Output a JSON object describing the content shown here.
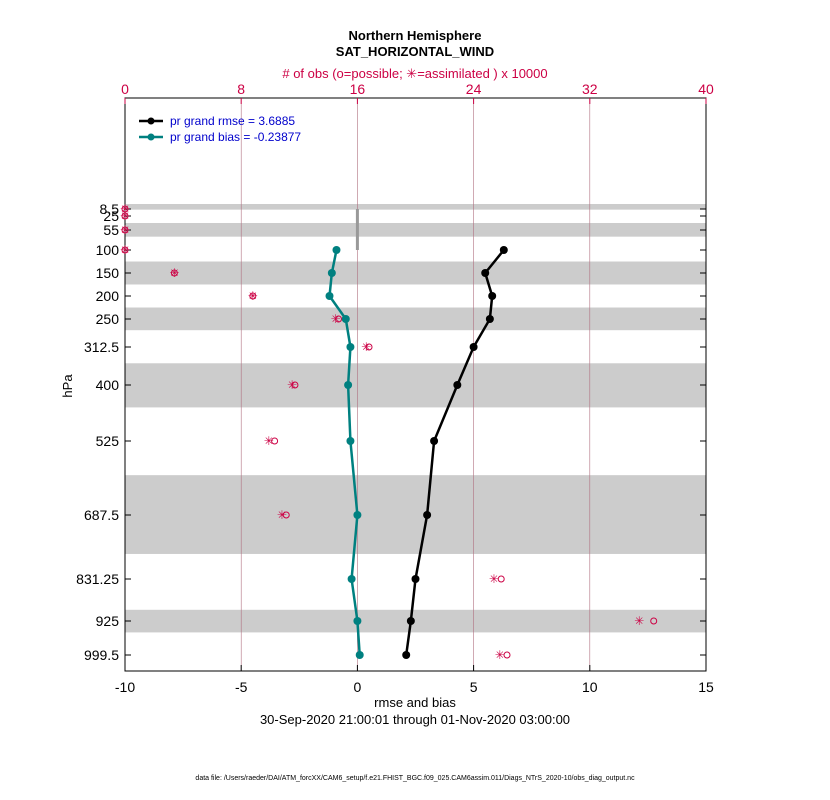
{
  "chart_data": {
    "type": "line",
    "title": "Northern Hemisphere",
    "subtitle": "SAT_HORIZONTAL_WIND",
    "top_axis_label": "# of obs (o=possible;  ✳=assimilated ) x 10000",
    "xlabel": "rmse and bias",
    "ylabel": "hPa",
    "date_range": "30-Sep-2020 21:00:01 through 01-Nov-2020 03:00:00",
    "xlim": [
      -10,
      15
    ],
    "x_ticks": [
      "-10",
      "-5",
      "0",
      "5",
      "10",
      "15"
    ],
    "top_xlim": [
      0,
      40
    ],
    "top_ticks": [
      "0",
      "8",
      "16",
      "24",
      "32",
      "40"
    ],
    "y_ticks": [
      "8.5",
      "25",
      "55",
      "100",
      "150",
      "200",
      "250",
      "312.5",
      "400",
      "525",
      "687.5",
      "831.25",
      "925",
      "999.5"
    ],
    "legend_position": "top-left",
    "series": [
      {
        "name": "pr grand rmse = 3.6885",
        "color": "#000000",
        "levels": [
          100,
          150,
          200,
          250,
          312.5,
          400,
          525,
          687.5,
          831.25,
          925,
          999.5
        ],
        "values": [
          6.3,
          5.5,
          5.8,
          5.7,
          5.0,
          4.3,
          3.3,
          3.0,
          2.5,
          2.3,
          2.1
        ]
      },
      {
        "name": "pr grand bias = -0.23877",
        "color": "#008080",
        "levels": [
          100,
          150,
          200,
          250,
          312.5,
          400,
          525,
          687.5,
          831.25,
          925,
          999.5
        ],
        "values": [
          -0.9,
          -1.1,
          -1.2,
          -0.5,
          -0.3,
          -0.4,
          -0.3,
          0.0,
          -0.25,
          0.0,
          0.1
        ]
      }
    ],
    "obs_counts": {
      "color": "#cc0044",
      "levels": [
        8.5,
        25,
        55,
        100,
        150,
        200,
        250,
        312.5,
        400,
        525,
        687.5,
        831.25,
        925,
        999.5
      ],
      "possible": [
        0,
        0,
        0,
        0,
        3.4,
        8.8,
        14.7,
        16.8,
        11.7,
        10.3,
        11.1,
        25.9,
        36.4,
        26.3
      ],
      "assimilated": [
        0,
        0,
        0,
        0,
        3.4,
        8.8,
        14.5,
        16.6,
        11.5,
        9.9,
        10.8,
        25.4,
        35.4,
        25.8
      ]
    },
    "shaded_layers": [
      [
        0,
        10
      ],
      [
        40,
        70
      ],
      [
        125,
        175
      ],
      [
        225,
        275
      ],
      [
        350,
        450
      ],
      [
        600,
        775
      ],
      [
        900,
        950
      ]
    ]
  },
  "footnote": "data file: /Users/raeder/DAI/ATM_forcXX/CAM6_setup/f.e21.FHIST_BGC.f09_025.CAM6assim.011/Diags_NTrS_2020-10/obs_diag_output.nc"
}
